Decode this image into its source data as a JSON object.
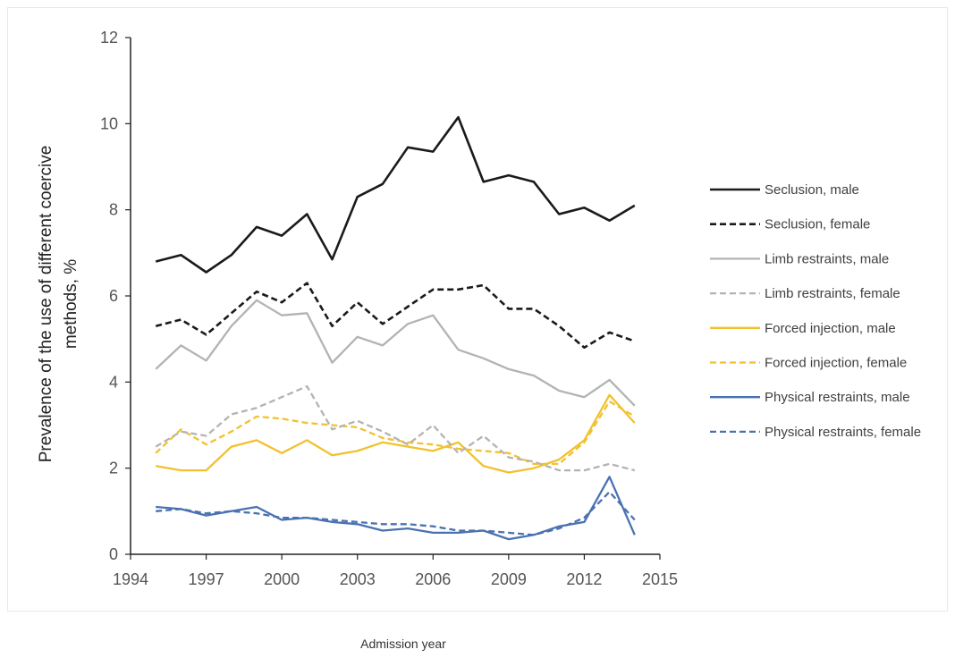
{
  "chart_data": {
    "type": "line",
    "title": "",
    "xlabel": "Admission year",
    "ylabel_line1": "Prevalence of the use of different coercive",
    "ylabel_line2": "methods, %",
    "xlim": [
      1994,
      2015
    ],
    "ylim": [
      0,
      12
    ],
    "xticks": [
      1994,
      1997,
      2000,
      2003,
      2006,
      2009,
      2012,
      2015
    ],
    "yticks": [
      0,
      2,
      4,
      6,
      8,
      10,
      12
    ],
    "grid": false,
    "legend_position": "right",
    "x": [
      1995,
      1996,
      1997,
      1998,
      1999,
      2000,
      2001,
      2002,
      2003,
      2004,
      2005,
      2006,
      2007,
      2008,
      2009,
      2010,
      2011,
      2012,
      2013,
      2014
    ],
    "series": [
      {
        "name": "Seclusion, male",
        "color": "#1a1a1a",
        "dash": "solid",
        "values": [
          6.8,
          6.95,
          6.55,
          6.95,
          7.6,
          7.4,
          7.9,
          6.85,
          8.3,
          8.6,
          9.45,
          9.35,
          10.15,
          8.65,
          8.8,
          8.65,
          7.9,
          8.05,
          7.75,
          8.1
        ]
      },
      {
        "name": "Seclusion, female",
        "color": "#1a1a1a",
        "dash": "dashed",
        "values": [
          5.3,
          5.45,
          5.1,
          5.6,
          6.1,
          5.85,
          6.3,
          5.3,
          5.85,
          5.35,
          5.75,
          6.15,
          6.15,
          6.25,
          5.7,
          5.7,
          5.3,
          4.8,
          5.15,
          4.95
        ]
      },
      {
        "name": "Limb restraints, male",
        "color": "#b3b3b3",
        "dash": "solid",
        "values": [
          4.3,
          4.85,
          4.5,
          5.3,
          5.9,
          5.55,
          5.6,
          4.45,
          5.05,
          4.85,
          5.35,
          5.55,
          4.75,
          4.55,
          4.3,
          4.15,
          3.8,
          3.65,
          4.05,
          3.45
        ]
      },
      {
        "name": "Limb restraints, female",
        "color": "#b3b3b3",
        "dash": "dashed",
        "values": [
          2.5,
          2.85,
          2.75,
          3.25,
          3.4,
          3.65,
          3.9,
          2.9,
          3.1,
          2.85,
          2.55,
          3.0,
          2.35,
          2.75,
          2.25,
          2.15,
          1.95,
          1.95,
          2.1,
          1.95
        ]
      },
      {
        "name": "Forced injection, male",
        "color": "#f2c12e",
        "dash": "solid",
        "values": [
          2.05,
          1.95,
          1.95,
          2.5,
          2.65,
          2.35,
          2.65,
          2.3,
          2.4,
          2.6,
          2.5,
          2.4,
          2.6,
          2.05,
          1.9,
          2.0,
          2.2,
          2.65,
          3.7,
          3.05
        ]
      },
      {
        "name": "Forced injection, female",
        "color": "#f2c12e",
        "dash": "dashed",
        "values": [
          2.35,
          2.9,
          2.55,
          2.85,
          3.2,
          3.15,
          3.05,
          3.0,
          2.95,
          2.7,
          2.6,
          2.55,
          2.45,
          2.4,
          2.35,
          2.1,
          2.1,
          2.6,
          3.55,
          3.2
        ]
      },
      {
        "name": "Physical restraints, male",
        "color": "#4a72b0",
        "dash": "solid",
        "values": [
          1.1,
          1.05,
          0.9,
          1.0,
          1.1,
          0.8,
          0.85,
          0.75,
          0.7,
          0.55,
          0.6,
          0.5,
          0.5,
          0.55,
          0.35,
          0.45,
          0.65,
          0.75,
          1.8,
          0.45
        ]
      },
      {
        "name": "Physical restraints, female",
        "color": "#4a72b0",
        "dash": "dashed",
        "values": [
          1.0,
          1.05,
          0.95,
          1.0,
          0.95,
          0.85,
          0.85,
          0.8,
          0.75,
          0.7,
          0.7,
          0.65,
          0.55,
          0.55,
          0.5,
          0.45,
          0.6,
          0.85,
          1.45,
          0.8
        ]
      }
    ]
  }
}
